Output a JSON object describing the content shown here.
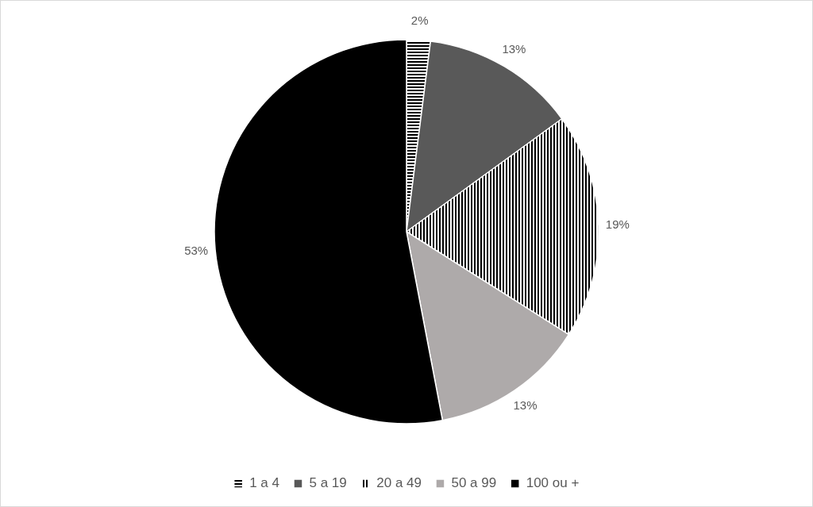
{
  "chart_data": {
    "type": "pie",
    "categories": [
      "1 a 4",
      "5 a 19",
      "20 a 49",
      "50 a 99",
      "100 ou +"
    ],
    "values": [
      2,
      13,
      19,
      13,
      53
    ],
    "value_labels": [
      "2%",
      "13%",
      "19%",
      "13%",
      "53%"
    ],
    "colors": [
      "#000000",
      "#595959",
      "#000000",
      "#aeaaaa",
      "#000000"
    ],
    "data_labels": true,
    "legend": "bottom"
  }
}
